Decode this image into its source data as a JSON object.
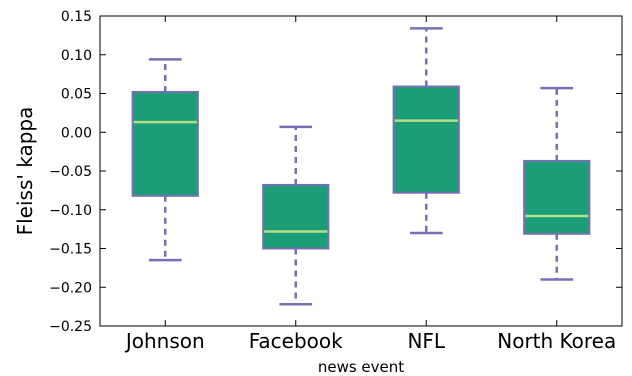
{
  "chart_data": {
    "type": "box",
    "xlabel": "news event",
    "ylabel": "Fleiss' kappa",
    "ylim": [
      -0.25,
      0.15
    ],
    "yticks": [
      0.15,
      0.1,
      0.05,
      0.0,
      -0.05,
      -0.1,
      -0.15,
      -0.2,
      -0.25
    ],
    "ytick_labels": [
      "0.15",
      "0.10",
      "0.05",
      "0.00",
      "−0.05",
      "−0.10",
      "−0.15",
      "−0.20",
      "−0.25"
    ],
    "categories": [
      "Johnson",
      "Facebook",
      "NFL",
      "North Korea"
    ],
    "boxes": [
      {
        "whisker_low": -0.165,
        "q1": -0.082,
        "median": 0.013,
        "q3": 0.052,
        "whisker_high": 0.094
      },
      {
        "whisker_low": -0.222,
        "q1": -0.15,
        "median": -0.128,
        "q3": -0.068,
        "whisker_high": 0.007
      },
      {
        "whisker_low": -0.13,
        "q1": -0.078,
        "median": 0.015,
        "q3": 0.059,
        "whisker_high": 0.134
      },
      {
        "whisker_low": -0.19,
        "q1": -0.131,
        "median": -0.108,
        "q3": -0.037,
        "whisker_high": 0.057
      }
    ],
    "grid": false,
    "colors": {
      "box_fill": "#1b9e77",
      "box_edge": "#7570b3",
      "median": "#b2df8a",
      "whisker": "#7570b3"
    }
  }
}
